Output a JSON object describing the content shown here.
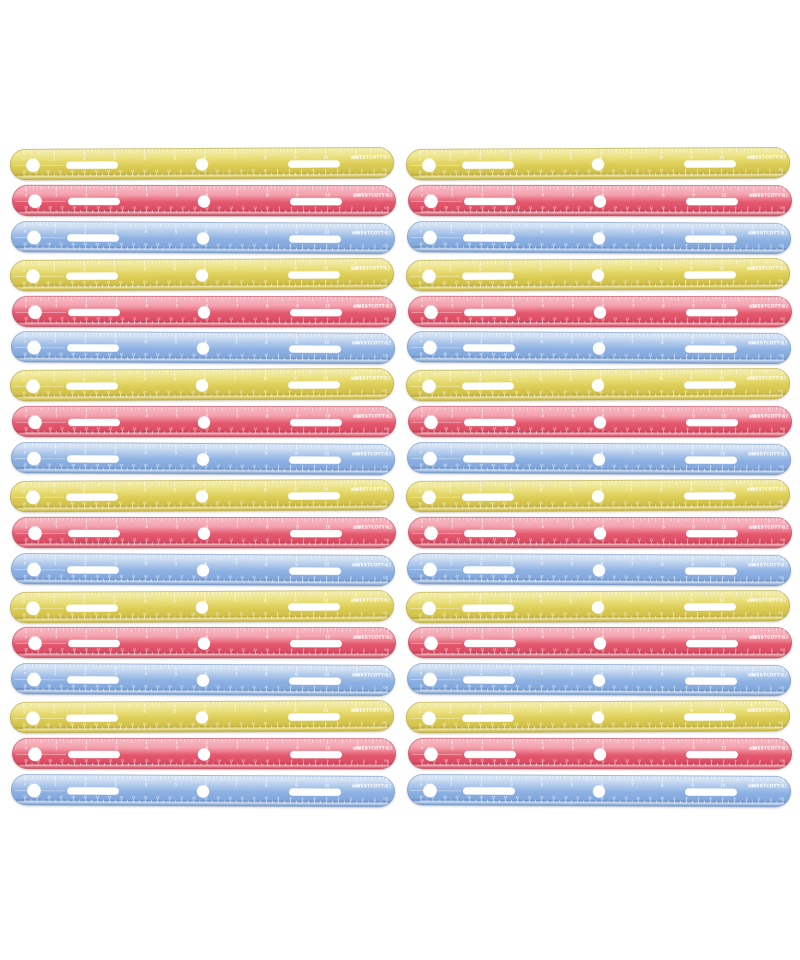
{
  "scene": {
    "background": "#ffffff",
    "description": "Two identical columns of stacked translucent plastic 12-inch rulers on a white background",
    "columns": 2,
    "rows_per_column": 18,
    "total_rulers": 36,
    "color_sequence": [
      "yellow",
      "red",
      "blue"
    ]
  },
  "ruler": {
    "brand": "WESTCOTT",
    "registered_mark": "®",
    "logo_glyph": "≡",
    "length_label": "12",
    "zero_label": "0",
    "inch_unit_label": "inch",
    "cm_unit_label": "CM",
    "inch_numbers": [
      "1",
      "2",
      "3",
      "4",
      "5",
      "6",
      "7",
      "8",
      "9",
      "10",
      "11"
    ],
    "inch_end_number": "12",
    "cm_numbers": [
      "30",
      "29",
      "28",
      "27",
      "26",
      "25",
      "24",
      "23",
      "22",
      "21",
      "20",
      "19",
      "18",
      "17",
      "16",
      "15",
      "14",
      "13",
      "12",
      "11",
      "10",
      "9",
      "8",
      "7",
      "6",
      "5",
      "4",
      "3",
      "2",
      "1"
    ],
    "tick_color": "#ffffff",
    "colors": {
      "yellow": {
        "name": "yellow",
        "highlight": "#f0e9a0",
        "light": "#eae07e",
        "base": "#dccd55",
        "deep": "#d0c04a",
        "edge_dark": "#b4a436",
        "bevel": "#eadd85",
        "bottom": "#c3b23e",
        "outline": "#b2a238"
      },
      "red": {
        "name": "red",
        "highlight": "#f5b1bc",
        "light": "#f3a2ae",
        "base": "#e4586e",
        "deep": "#db4c63",
        "edge_dark": "#b93a51",
        "bevel": "#f09aa7",
        "bottom": "#c84458",
        "outline": "#bd3f55"
      },
      "blue": {
        "name": "blue",
        "highlight": "#d2e1f4",
        "light": "#b5cdec",
        "base": "#8db1e3",
        "deep": "#81a7dc",
        "edge_dark": "#6288bd",
        "bevel": "#bcd2ee",
        "bottom": "#7398cc",
        "outline": "#6d92c3"
      }
    }
  }
}
